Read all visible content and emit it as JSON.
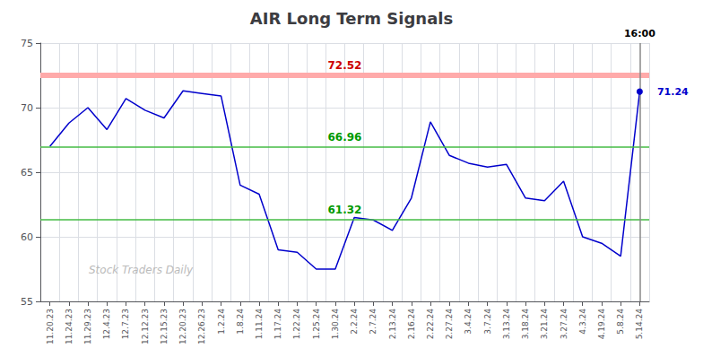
{
  "chart_data": {
    "type": "line",
    "title": "AIR Long Term Signals",
    "categories": [
      "11.20.23",
      "11.24.23",
      "11.29.23",
      "12.4.23",
      "12.7.23",
      "12.12.23",
      "12.15.23",
      "12.20.23",
      "12.26.23",
      "1.2.24",
      "1.8.24",
      "1.11.24",
      "1.17.24",
      "1.22.24",
      "1.25.24",
      "1.30.24",
      "2.2.24",
      "2.7.24",
      "2.13.24",
      "2.16.24",
      "2.22.24",
      "2.27.24",
      "3.4.24",
      "3.7.24",
      "3.13.24",
      "3.18.24",
      "3.21.24",
      "3.27.24",
      "4.3.24",
      "4.19.24",
      "5.8.24",
      "5.14.24"
    ],
    "values": [
      67.0,
      68.8,
      70.0,
      68.3,
      70.7,
      69.8,
      69.2,
      71.3,
      71.1,
      70.9,
      64.0,
      63.3,
      59.0,
      58.8,
      57.5,
      57.5,
      61.5,
      61.3,
      60.5,
      63.0,
      68.9,
      66.3,
      65.7,
      65.4,
      65.6,
      63.0,
      62.8,
      64.3,
      60.0,
      59.5,
      58.5,
      71.24
    ],
    "color": "#0000cc",
    "ylim": [
      55,
      75
    ],
    "yticks": [
      55,
      60,
      65,
      70,
      75
    ],
    "grid": true,
    "hlines": [
      {
        "value": 72.52,
        "label": "72.52",
        "color": "#ffaaaa",
        "label_color": "#cc0000"
      },
      {
        "value": 66.96,
        "label": "66.96",
        "color": "#44bb44",
        "label_color": "#009900"
      },
      {
        "value": 61.32,
        "label": "61.32",
        "color": "#44bb44",
        "label_color": "#009900"
      }
    ],
    "vline": {
      "category": "5.14.24",
      "label": "16:00",
      "color": "#888888"
    },
    "end_value_label": {
      "value": 71.24,
      "label": "71.24",
      "color": "#0000cc"
    },
    "watermark": {
      "text": "Stock Traders Daily",
      "color": "#bbbbbb"
    }
  }
}
